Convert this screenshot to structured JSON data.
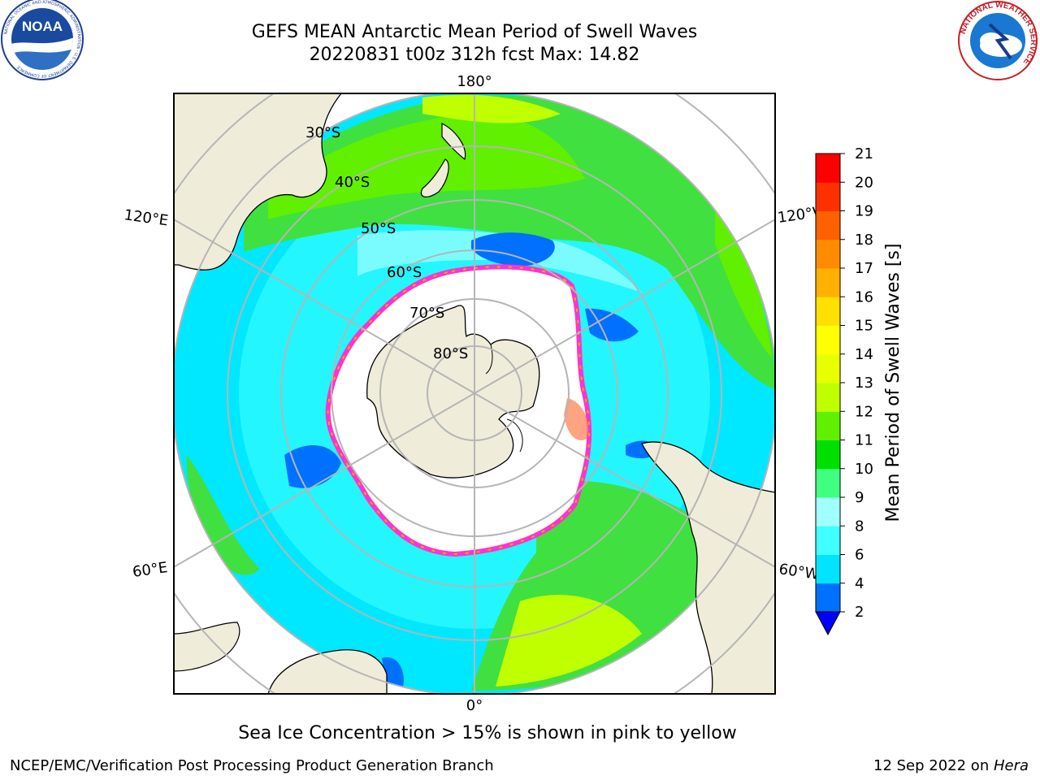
{
  "title": {
    "line1": "GEFS MEAN Antarctic Mean Period of Swell Waves",
    "line2": "20220831 t00z 312h fcst   Max: 14.82"
  },
  "logos": {
    "noaa": {
      "text": "NOAA",
      "ring_text": "NATIONAL OCEANIC AND ATMOSPHERIC ADMINISTRATION · U.S. DEPARTMENT OF COMMERCE"
    },
    "nws": {
      "ring_text": "NATIONAL WEATHER SERVICE"
    }
  },
  "map": {
    "projection": "south-polar-stereographic",
    "longitude_labels": {
      "top": "180°",
      "bottom": "0°",
      "left_upper": "120°E",
      "left_lower": "60°E",
      "right_upper": "120°W",
      "right_lower": "60°W"
    },
    "latitude_labels": [
      "30°S",
      "40°S",
      "50°S",
      "60°S",
      "70°S",
      "80°S"
    ],
    "colors": {
      "land": "#efedda",
      "grid": "#b5b5b5",
      "ice_edge": "#ff33cc",
      "ice_inner": "#ffa500"
    }
  },
  "colorbar": {
    "label": "Mean Period of Swell Waves [s]",
    "ticks": [
      "2",
      "4",
      "6",
      "8",
      "9",
      "10",
      "11",
      "12",
      "13",
      "14",
      "15",
      "16",
      "17",
      "18",
      "19",
      "20",
      "21"
    ],
    "colors": [
      "#0070ff",
      "#00e4ff",
      "#40ffff",
      "#a0ffff",
      "#40ff80",
      "#00e000",
      "#60f000",
      "#c0ff00",
      "#e8ff00",
      "#ffff00",
      "#ffe000",
      "#ffb000",
      "#ff8c00",
      "#ff6000",
      "#ff3000",
      "#ff0000"
    ],
    "extend_color": "#0000ff"
  },
  "caption": "Sea Ice Concentration > 15% is shown in pink to yellow",
  "footer": {
    "left": "NCEP/EMC/Verification Post Processing Product Generation Branch",
    "right_prefix": "12 Sep 2022 on ",
    "right_italic": "Hera"
  }
}
